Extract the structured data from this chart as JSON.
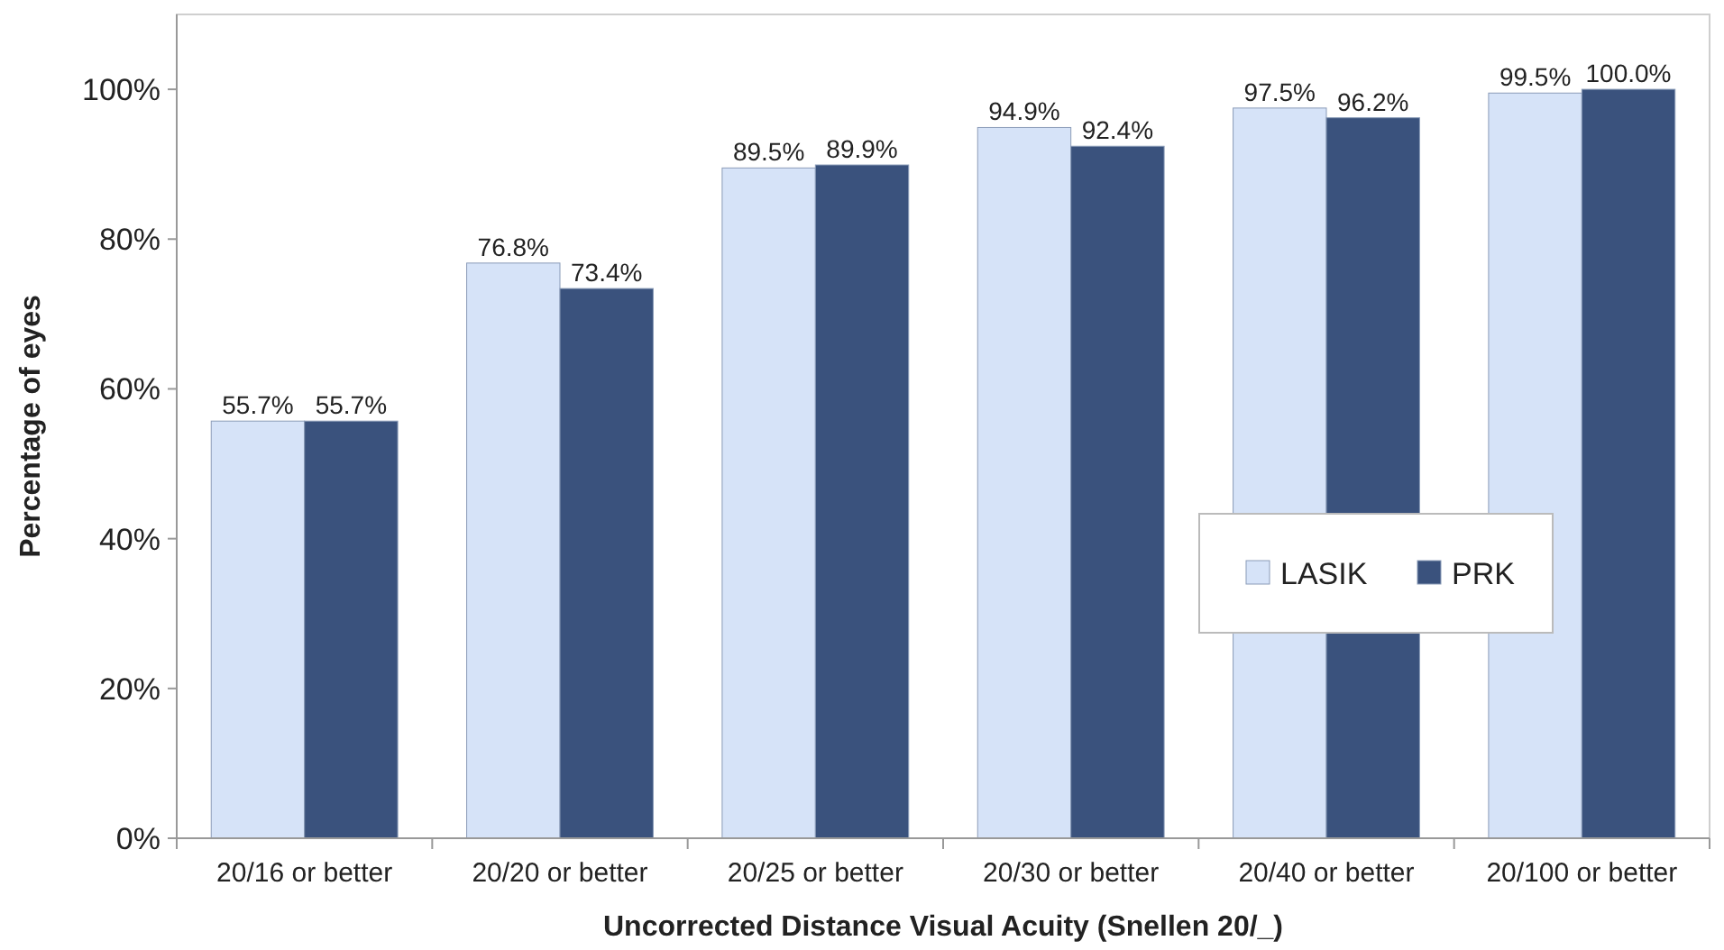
{
  "chart_data": {
    "type": "bar",
    "xlabel": "Uncorrected Distance Visual Acuity (Snellen 20/_)",
    "ylabel": "Percentage of eyes",
    "categories": [
      "20/16 or better",
      "20/20 or better",
      "20/25 or better",
      "20/30 or better",
      "20/40 or better",
      "20/100 or better"
    ],
    "series": [
      {
        "name": "LASIK",
        "color": "#d6e3f8",
        "values": [
          55.7,
          76.8,
          89.5,
          94.9,
          97.5,
          99.5
        ],
        "value_labels": [
          "55.7%",
          "76.8%",
          "89.5%",
          "94.9%",
          "97.5%",
          "99.5%"
        ]
      },
      {
        "name": "PRK",
        "color": "#3a527d",
        "values": [
          55.7,
          73.4,
          89.9,
          92.4,
          96.2,
          100.0
        ],
        "value_labels": [
          "55.7%",
          "73.4%",
          "89.9%",
          "92.4%",
          "96.2%",
          "100.0%"
        ]
      }
    ],
    "ylim": [
      0,
      110
    ],
    "yticks": [
      {
        "value": 0,
        "label": "0%"
      },
      {
        "value": 20,
        "label": "20%"
      },
      {
        "value": 40,
        "label": "40%"
      },
      {
        "value": 60,
        "label": "60%"
      },
      {
        "value": 80,
        "label": "80%"
      },
      {
        "value": 100,
        "label": "100%"
      }
    ],
    "legend": "right",
    "grid": false
  }
}
